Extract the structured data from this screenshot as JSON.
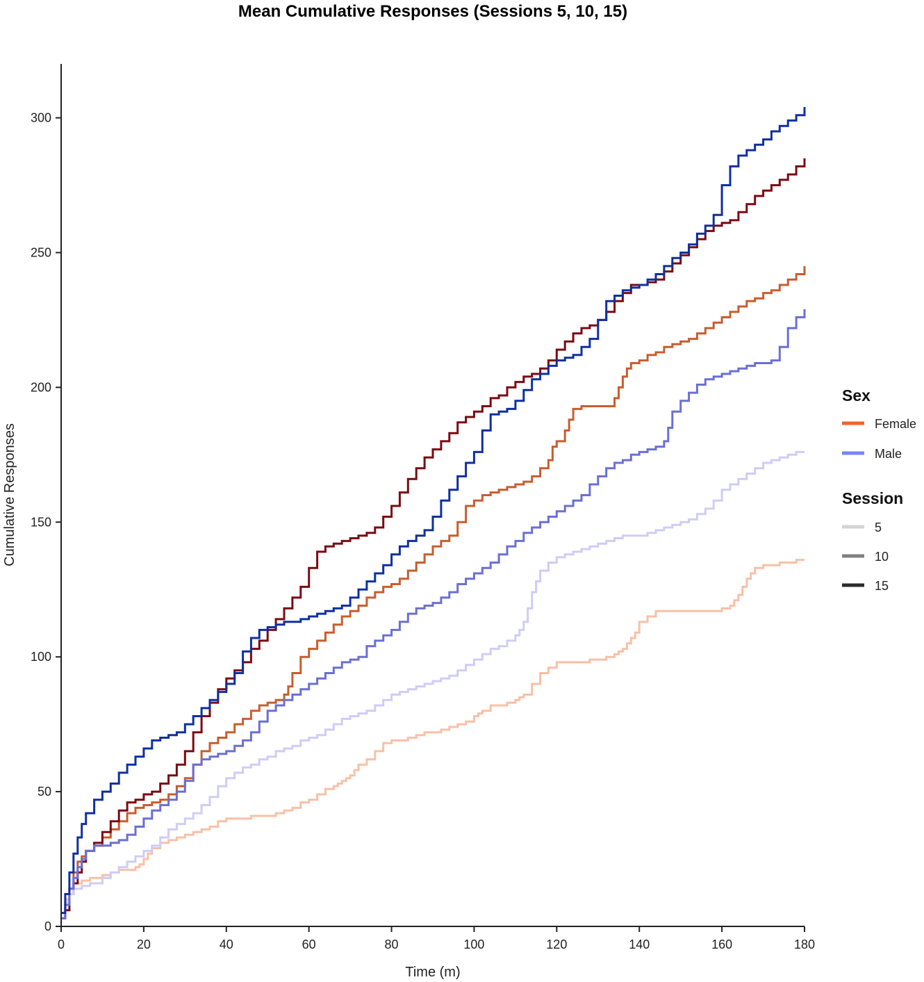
{
  "chart_data": {
    "type": "line",
    "title": "Mean Cumulative Responses (Sessions 5, 10, 15)",
    "xlabel": "Time (m)",
    "ylabel": "Cumulative Responses",
    "xlim": [
      0,
      180
    ],
    "ylim": [
      0,
      320
    ],
    "xticks": [
      0,
      20,
      40,
      60,
      80,
      100,
      120,
      140,
      160,
      180
    ],
    "yticks": [
      0,
      50,
      100,
      150,
      200,
      250,
      300
    ],
    "grid": false,
    "step": true,
    "legend": {
      "placement": "right",
      "groups": [
        {
          "title": "Sex",
          "entries": [
            {
              "label": "Female",
              "color": "#f4632b"
            },
            {
              "label": "Male",
              "color": "#7b83f6"
            }
          ]
        },
        {
          "title": "Session",
          "entries": [
            {
              "label": "5",
              "color": "#d3d3d3"
            },
            {
              "label": "10",
              "color": "#808080"
            },
            {
              "label": "15",
              "color": "#2b2b2b"
            }
          ]
        }
      ]
    },
    "series": [
      {
        "sex": "Female",
        "session": "5",
        "color": "#f8c0a6",
        "x": [
          0,
          1,
          2,
          3,
          5,
          7,
          10,
          12,
          14,
          17,
          18,
          19,
          20,
          21,
          22,
          24,
          26,
          28,
          30,
          32,
          34,
          36,
          38,
          40,
          43,
          46,
          50,
          52,
          54,
          56,
          58,
          60,
          62,
          64,
          66,
          67,
          68,
          69,
          70,
          71,
          72,
          74,
          76,
          78,
          80,
          82,
          84,
          86,
          88,
          90,
          92,
          94,
          96,
          98,
          100,
          101,
          102,
          104,
          106,
          108,
          110,
          111,
          112,
          114,
          116,
          118,
          120,
          124,
          128,
          132,
          134,
          135,
          136,
          137,
          138,
          139,
          140,
          142,
          144,
          146,
          150,
          154,
          158,
          160,
          162,
          163,
          164,
          165,
          166,
          167,
          168,
          170,
          172,
          174,
          176,
          178,
          180
        ],
        "y": [
          3,
          10,
          14,
          16,
          17,
          18,
          19,
          20,
          21,
          21,
          22,
          23,
          25,
          27,
          29,
          31,
          32,
          33,
          34,
          35,
          36,
          37,
          39,
          40,
          40,
          41,
          41,
          42,
          43,
          44,
          46,
          47,
          49,
          51,
          52,
          53,
          54,
          55,
          56,
          58,
          60,
          62,
          65,
          68,
          69,
          69,
          70,
          71,
          72,
          72,
          73,
          74,
          75,
          76,
          78,
          79,
          80,
          82,
          82,
          83,
          84,
          85,
          86,
          90,
          94,
          96,
          98,
          98,
          99,
          100,
          101,
          102,
          103,
          105,
          107,
          109,
          113,
          115,
          117,
          117,
          117,
          117,
          117,
          118,
          119,
          121,
          123,
          126,
          129,
          131,
          133,
          134,
          134,
          135,
          135,
          136,
          136
        ]
      },
      {
        "sex": "Female",
        "session": "10",
        "color": "#c85d2e",
        "x": [
          0,
          1,
          2,
          3,
          4,
          5,
          6,
          8,
          10,
          12,
          14,
          16,
          18,
          20,
          22,
          24,
          26,
          28,
          30,
          32,
          34,
          36,
          38,
          40,
          42,
          44,
          46,
          48,
          50,
          52,
          54,
          55,
          56,
          58,
          60,
          62,
          64,
          66,
          68,
          70,
          72,
          74,
          76,
          78,
          80,
          82,
          84,
          86,
          88,
          90,
          92,
          94,
          96,
          98,
          100,
          102,
          104,
          106,
          108,
          110,
          112,
          114,
          116,
          118,
          119,
          120,
          122,
          123,
          124,
          126,
          128,
          130,
          132,
          134,
          135,
          136,
          137,
          138,
          140,
          142,
          144,
          146,
          148,
          150,
          152,
          154,
          156,
          158,
          160,
          162,
          164,
          166,
          168,
          170,
          172,
          174,
          176,
          178,
          180
        ],
        "y": [
          3,
          8,
          14,
          20,
          24,
          26,
          28,
          30,
          33,
          36,
          39,
          42,
          44,
          45,
          46,
          47,
          49,
          52,
          55,
          60,
          65,
          68,
          70,
          72,
          75,
          77,
          80,
          82,
          83,
          84,
          86,
          89,
          94,
          100,
          103,
          106,
          109,
          112,
          115,
          117,
          119,
          122,
          124,
          126,
          127,
          129,
          132,
          135,
          138,
          141,
          143,
          145,
          150,
          156,
          158,
          160,
          161,
          162,
          163,
          164,
          165,
          167,
          170,
          173,
          178,
          180,
          184,
          188,
          192,
          193,
          193,
          193,
          193,
          196,
          200,
          204,
          207,
          209,
          210,
          212,
          213,
          215,
          216,
          217,
          218,
          220,
          222,
          224,
          226,
          228,
          230,
          232,
          233,
          235,
          236,
          238,
          240,
          242,
          245
        ]
      },
      {
        "sex": "Female",
        "session": "15",
        "color": "#7a0a12",
        "x": [
          0,
          1,
          2,
          3,
          4,
          5,
          6,
          8,
          10,
          12,
          14,
          16,
          18,
          20,
          22,
          24,
          26,
          28,
          30,
          32,
          34,
          36,
          38,
          40,
          42,
          44,
          46,
          48,
          50,
          52,
          54,
          56,
          58,
          60,
          62,
          64,
          66,
          68,
          70,
          72,
          74,
          76,
          78,
          80,
          82,
          84,
          86,
          88,
          90,
          92,
          94,
          96,
          98,
          100,
          102,
          104,
          106,
          108,
          110,
          112,
          114,
          116,
          118,
          120,
          122,
          124,
          126,
          128,
          130,
          132,
          134,
          136,
          138,
          140,
          142,
          144,
          146,
          148,
          150,
          152,
          154,
          156,
          158,
          160,
          162,
          164,
          166,
          168,
          170,
          172,
          174,
          176,
          178,
          180
        ],
        "y": [
          3,
          6,
          12,
          16,
          20,
          24,
          28,
          31,
          35,
          39,
          43,
          46,
          47,
          49,
          50,
          53,
          56,
          60,
          65,
          72,
          78,
          83,
          88,
          92,
          95,
          98,
          103,
          106,
          110,
          114,
          118,
          122,
          126,
          133,
          139,
          141,
          142,
          143,
          144,
          145,
          146,
          148,
          152,
          156,
          161,
          166,
          170,
          174,
          177,
          180,
          183,
          187,
          189,
          191,
          193,
          196,
          197,
          200,
          202,
          204,
          205,
          207,
          210,
          214,
          217,
          220,
          222,
          223,
          225,
          228,
          232,
          235,
          238,
          238,
          239,
          240,
          243,
          246,
          249,
          252,
          255,
          258,
          260,
          261,
          262,
          265,
          268,
          271,
          273,
          275,
          277,
          279,
          282,
          285
        ]
      },
      {
        "sex": "Male",
        "session": "5",
        "color": "#cfccf7",
        "x": [
          0,
          1,
          2,
          3,
          5,
          7,
          10,
          12,
          14,
          16,
          18,
          20,
          22,
          24,
          26,
          28,
          30,
          32,
          34,
          36,
          38,
          40,
          42,
          44,
          46,
          48,
          50,
          52,
          54,
          56,
          58,
          60,
          62,
          64,
          66,
          68,
          70,
          72,
          74,
          76,
          78,
          80,
          82,
          84,
          86,
          88,
          90,
          92,
          94,
          96,
          98,
          100,
          102,
          104,
          106,
          108,
          110,
          111,
          112,
          113,
          114,
          115,
          116,
          118,
          120,
          122,
          124,
          126,
          128,
          130,
          132,
          134,
          136,
          138,
          140,
          142,
          144,
          146,
          148,
          150,
          152,
          154,
          156,
          158,
          160,
          162,
          164,
          166,
          168,
          170,
          172,
          174,
          176,
          178,
          180
        ],
        "y": [
          5,
          9,
          12,
          14,
          15,
          16,
          18,
          20,
          22,
          24,
          26,
          28,
          30,
          33,
          36,
          38,
          40,
          42,
          45,
          48,
          52,
          55,
          57,
          59,
          60,
          62,
          63,
          65,
          66,
          67,
          69,
          70,
          71,
          73,
          75,
          77,
          78,
          79,
          80,
          82,
          84,
          86,
          87,
          88,
          89,
          90,
          91,
          92,
          93,
          95,
          97,
          99,
          101,
          103,
          104,
          106,
          108,
          110,
          113,
          118,
          124,
          128,
          132,
          135,
          137,
          138,
          139,
          140,
          141,
          142,
          143,
          144,
          145,
          145,
          145,
          146,
          147,
          148,
          149,
          150,
          151,
          153,
          155,
          158,
          162,
          164,
          166,
          168,
          170,
          172,
          173,
          174,
          175,
          176,
          176
        ]
      },
      {
        "sex": "Male",
        "session": "10",
        "color": "#6a6fd4",
        "x": [
          0,
          1,
          2,
          3,
          4,
          5,
          6,
          8,
          10,
          12,
          14,
          16,
          18,
          20,
          22,
          24,
          26,
          28,
          30,
          32,
          34,
          36,
          38,
          40,
          42,
          44,
          46,
          48,
          50,
          52,
          54,
          56,
          58,
          60,
          62,
          64,
          66,
          68,
          70,
          72,
          74,
          76,
          78,
          80,
          82,
          84,
          86,
          88,
          90,
          92,
          94,
          96,
          98,
          100,
          102,
          104,
          106,
          108,
          110,
          112,
          114,
          116,
          118,
          120,
          122,
          124,
          126,
          128,
          130,
          132,
          134,
          136,
          138,
          140,
          142,
          144,
          146,
          147,
          148,
          150,
          152,
          154,
          156,
          158,
          160,
          162,
          164,
          166,
          168,
          170,
          172,
          174,
          176,
          178,
          180
        ],
        "y": [
          3,
          8,
          14,
          18,
          22,
          25,
          28,
          30,
          30,
          31,
          32,
          34,
          37,
          40,
          43,
          45,
          47,
          50,
          54,
          60,
          62,
          63,
          64,
          65,
          67,
          69,
          72,
          76,
          80,
          82,
          84,
          86,
          88,
          90,
          92,
          94,
          96,
          98,
          99,
          100,
          104,
          106,
          108,
          110,
          113,
          116,
          118,
          119,
          120,
          122,
          124,
          127,
          129,
          131,
          133,
          135,
          138,
          141,
          143,
          146,
          148,
          150,
          152,
          154,
          156,
          158,
          160,
          164,
          167,
          170,
          172,
          173,
          175,
          176,
          177,
          178,
          180,
          185,
          191,
          195,
          198,
          201,
          203,
          204,
          205,
          206,
          207,
          208,
          209,
          209,
          210,
          215,
          222,
          226,
          229
        ]
      },
      {
        "sex": "Male",
        "session": "15",
        "color": "#0f2fa0",
        "x": [
          0,
          1,
          2,
          3,
          4,
          5,
          6,
          8,
          10,
          12,
          14,
          16,
          18,
          20,
          22,
          24,
          26,
          28,
          30,
          32,
          34,
          36,
          38,
          40,
          42,
          44,
          46,
          48,
          50,
          52,
          54,
          56,
          58,
          60,
          62,
          64,
          66,
          68,
          70,
          72,
          74,
          76,
          78,
          80,
          82,
          84,
          86,
          88,
          90,
          92,
          94,
          96,
          98,
          100,
          102,
          104,
          106,
          108,
          110,
          112,
          114,
          116,
          118,
          120,
          122,
          124,
          126,
          128,
          130,
          132,
          134,
          136,
          138,
          140,
          142,
          144,
          146,
          148,
          150,
          152,
          154,
          156,
          158,
          160,
          162,
          164,
          166,
          168,
          170,
          172,
          174,
          176,
          178,
          180
        ],
        "y": [
          5,
          12,
          20,
          27,
          33,
          38,
          42,
          47,
          50,
          53,
          57,
          60,
          63,
          66,
          69,
          70,
          71,
          72,
          75,
          78,
          81,
          84,
          87,
          90,
          94,
          102,
          107,
          110,
          111,
          112,
          113,
          113,
          114,
          115,
          116,
          117,
          118,
          119,
          122,
          125,
          128,
          131,
          134,
          138,
          141,
          143,
          145,
          147,
          152,
          158,
          162,
          167,
          172,
          176,
          184,
          190,
          191,
          192,
          195,
          199,
          203,
          205,
          208,
          210,
          211,
          212,
          215,
          218,
          225,
          232,
          234,
          236,
          237,
          238,
          240,
          242,
          245,
          248,
          250,
          253,
          257,
          260,
          264,
          275,
          282,
          286,
          288,
          290,
          292,
          295,
          297,
          299,
          301,
          304
        ]
      }
    ]
  }
}
